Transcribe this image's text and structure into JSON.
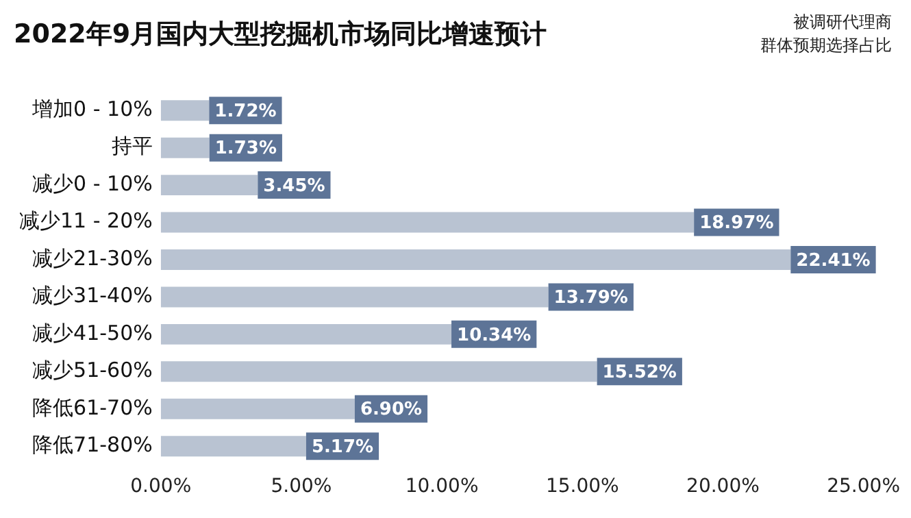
{
  "chart_data": {
    "type": "bar",
    "orientation": "horizontal",
    "title": "2022年9月国内大型挖掘机市场同比增速预计",
    "annotations": [
      "被调研代理商",
      "群体预期选择占比"
    ],
    "categories": [
      "增加0 - 10%",
      "持平",
      "减少0 - 10%",
      "减少11 - 20%",
      "减少21-30%",
      "减少31-40%",
      "减少41-50%",
      "减少51-60%",
      "降低61-70%",
      "降低71-80%"
    ],
    "values": [
      1.72,
      1.73,
      3.45,
      18.97,
      22.41,
      13.79,
      10.34,
      15.52,
      6.9,
      5.17
    ],
    "value_labels": [
      "1.72%",
      "1.73%",
      "3.45%",
      "18.97%",
      "22.41%",
      "13.79%",
      "10.34%",
      "15.52%",
      "6.90%",
      "5.17%"
    ],
    "color": "#b9c3d2",
    "xlim": [
      0,
      25
    ],
    "xticks": [
      {
        "value": 0,
        "label": "0.00%"
      },
      {
        "value": 5,
        "label": "5.00%"
      },
      {
        "value": 10,
        "label": "10.00%"
      },
      {
        "value": 15,
        "label": "15.00%"
      },
      {
        "value": 20,
        "label": "20.00%"
      },
      {
        "value": 25,
        "label": "25.00%"
      }
    ],
    "grid": false,
    "legend": false
  }
}
